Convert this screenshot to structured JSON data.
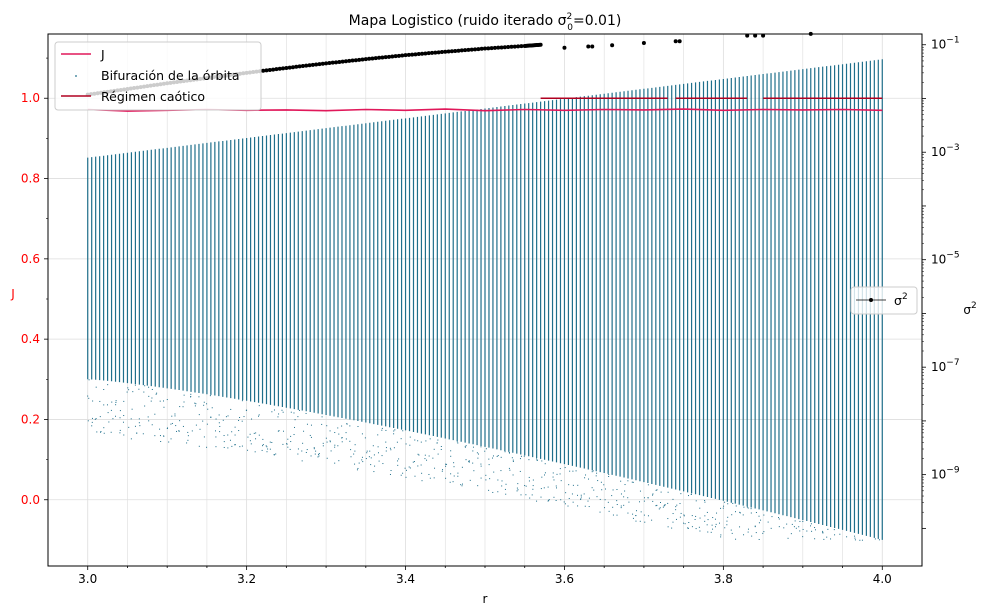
{
  "chart_data": {
    "type": "scatter",
    "title_main": "Mapa Logistico (ruido iterado σ",
    "title_sup": "2",
    "title_sub": "0",
    "title_tail": "=0.01)",
    "xlabel": "r",
    "ylabel_left": "J",
    "ylabel_right_base": "σ",
    "ylabel_right_sup": "2",
    "xlim": [
      2.95,
      4.05
    ],
    "ylim_left": [
      -0.165,
      1.16
    ],
    "ylim_right_log10": [
      -10.7,
      -0.8
    ],
    "x_ticks": [
      3.0,
      3.2,
      3.4,
      3.6,
      3.8,
      4.0
    ],
    "x_tick_labels": [
      "3.0",
      "3.2",
      "3.4",
      "3.6",
      "3.8",
      "4.0"
    ],
    "y_left_ticks": [
      0.0,
      0.2,
      0.4,
      0.6,
      0.8,
      1.0
    ],
    "y_left_tick_labels": [
      "0.0",
      "0.2",
      "0.4",
      "0.6",
      "0.8",
      "1.0"
    ],
    "y_right_ticks_log10": [
      -9,
      -7,
      -5,
      -3,
      -1
    ],
    "y_right_tick_base": "10",
    "y_right_tick_exps": [
      "−9",
      "−7",
      "−5",
      "−3",
      "−1"
    ],
    "grid": true,
    "colors": {
      "J": "#e0185a",
      "bifurcation": "#1f6f8b",
      "chaos": "#b00020",
      "sigma2": "#000000",
      "left_axis_text": "#ff0000"
    },
    "series": [
      {
        "name": "J",
        "axis": "left",
        "style": "line",
        "x": [
          3.0,
          3.05,
          3.1,
          3.15,
          3.2,
          3.25,
          3.3,
          3.35,
          3.4,
          3.45,
          3.5,
          3.55,
          3.6,
          3.65,
          3.7,
          3.75,
          3.8,
          3.85,
          3.9,
          3.95,
          4.0
        ],
        "y": [
          0.972,
          0.968,
          0.97,
          0.972,
          0.97,
          0.971,
          0.969,
          0.972,
          0.97,
          0.973,
          0.969,
          0.972,
          0.97,
          0.972,
          0.971,
          0.973,
          0.97,
          0.972,
          0.971,
          0.972,
          0.97
        ]
      },
      {
        "name": "Bifuración de la órbita",
        "axis": "left",
        "style": "points",
        "r_range": [
          3.0,
          4.0
        ],
        "upper_bound": [
          0.852,
          1.097
        ],
        "lower_dense": [
          0.3,
          -0.1
        ],
        "note_shape": "vertical bands"
      },
      {
        "name": "Régimen caótico",
        "axis": "left",
        "style": "hline-segments",
        "y": 1.0,
        "segments": [
          [
            3.57,
            3.6
          ],
          [
            3.6,
            3.73
          ],
          [
            3.74,
            3.83
          ],
          [
            3.85,
            4.0
          ]
        ]
      },
      {
        "name": "σ2",
        "legend_label_base": "σ",
        "legend_label_sup": "2",
        "axis": "right",
        "style": "line-markers",
        "x_log_pairs_main": [
          [
            3.0,
            0.0118
          ],
          [
            3.05,
            0.015
          ],
          [
            3.1,
            0.0192
          ],
          [
            3.15,
            0.024
          ],
          [
            3.2,
            0.03
          ],
          [
            3.25,
            0.037
          ],
          [
            3.3,
            0.045
          ],
          [
            3.35,
            0.054
          ],
          [
            3.4,
            0.064
          ],
          [
            3.45,
            0.074
          ],
          [
            3.5,
            0.085
          ],
          [
            3.55,
            0.095
          ],
          [
            3.57,
            0.1
          ]
        ],
        "x_log_pairs_isolated": [
          [
            3.6,
            0.088
          ],
          [
            3.63,
            0.093
          ],
          [
            3.635,
            0.093
          ],
          [
            3.66,
            0.098
          ],
          [
            3.7,
            0.108
          ],
          [
            3.74,
            0.116
          ],
          [
            3.745,
            0.116
          ],
          [
            3.83,
            0.148
          ],
          [
            3.84,
            0.148
          ],
          [
            3.85,
            0.148
          ],
          [
            3.91,
            0.159
          ]
        ]
      }
    ],
    "legend_main": [
      "J",
      "Bifuración de la órbita",
      "Régimen caótico"
    ],
    "legend_right": [
      "σ2"
    ]
  }
}
